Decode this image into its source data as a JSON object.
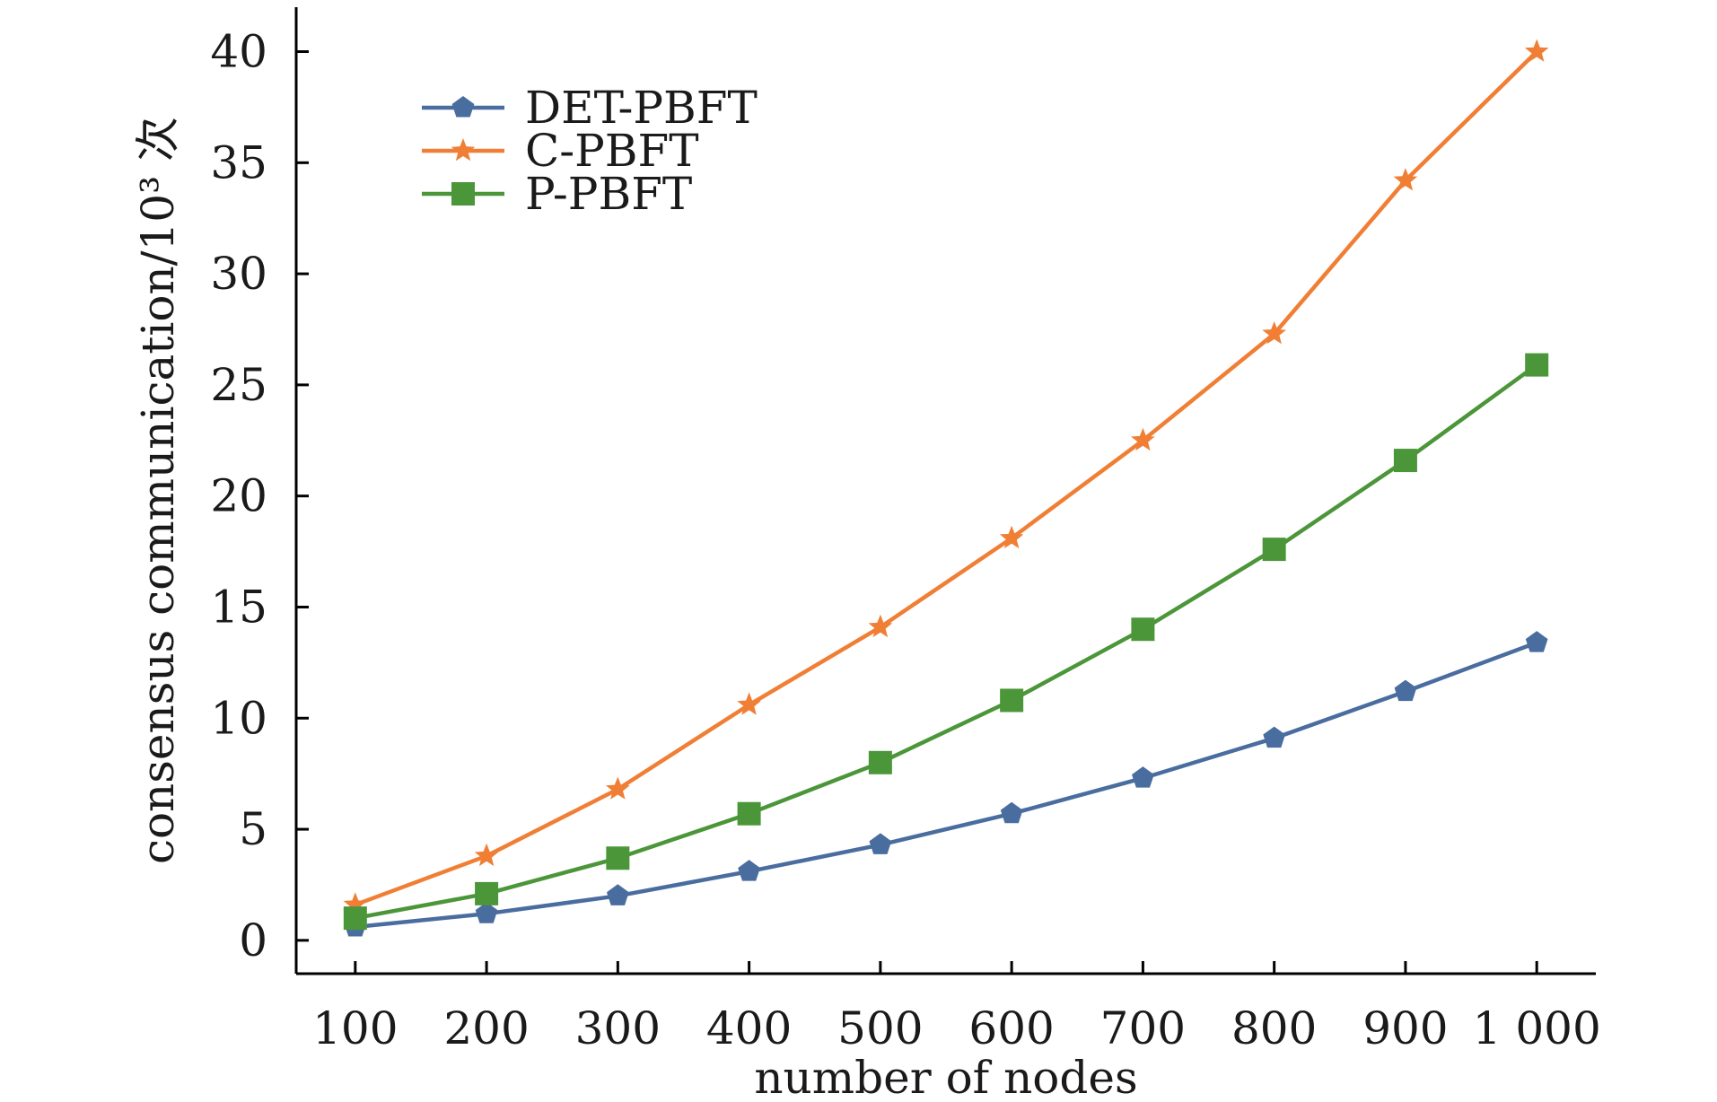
{
  "chart_data": {
    "type": "line",
    "xlabel": "number of nodes",
    "ylabel": "consensus communication/10³ 次",
    "x": [
      100,
      200,
      300,
      400,
      500,
      600,
      700,
      800,
      900,
      1000
    ],
    "x_tick_labels": [
      "100",
      "200",
      "300",
      "400",
      "500",
      "600",
      "700",
      "800",
      "900",
      "1 000"
    ],
    "y_ticks": [
      0,
      5,
      10,
      15,
      20,
      25,
      30,
      35,
      40
    ],
    "y_tick_labels": [
      "0",
      "5",
      "10",
      "15",
      "20",
      "25",
      "30",
      "35",
      "40"
    ],
    "xlim": [
      55,
      1045
    ],
    "ylim": [
      -1.5,
      42
    ],
    "grid": false,
    "legend_position": "top-left",
    "series": [
      {
        "name": "DET-PBFT",
        "color": "#4a6d9f",
        "marker": "pentagon",
        "values": [
          0.6,
          1.2,
          2.0,
          3.1,
          4.3,
          5.7,
          7.3,
          9.1,
          11.2,
          13.4
        ]
      },
      {
        "name": "C-PBFT",
        "color": "#f07f35",
        "marker": "star",
        "values": [
          1.6,
          3.8,
          6.8,
          10.6,
          14.1,
          18.1,
          22.5,
          27.3,
          34.2,
          40.0
        ]
      },
      {
        "name": "P-PBFT",
        "color": "#4c963a",
        "marker": "square",
        "values": [
          1.0,
          2.1,
          3.7,
          5.7,
          8.0,
          10.8,
          14.0,
          17.6,
          21.6,
          25.9
        ]
      }
    ]
  }
}
